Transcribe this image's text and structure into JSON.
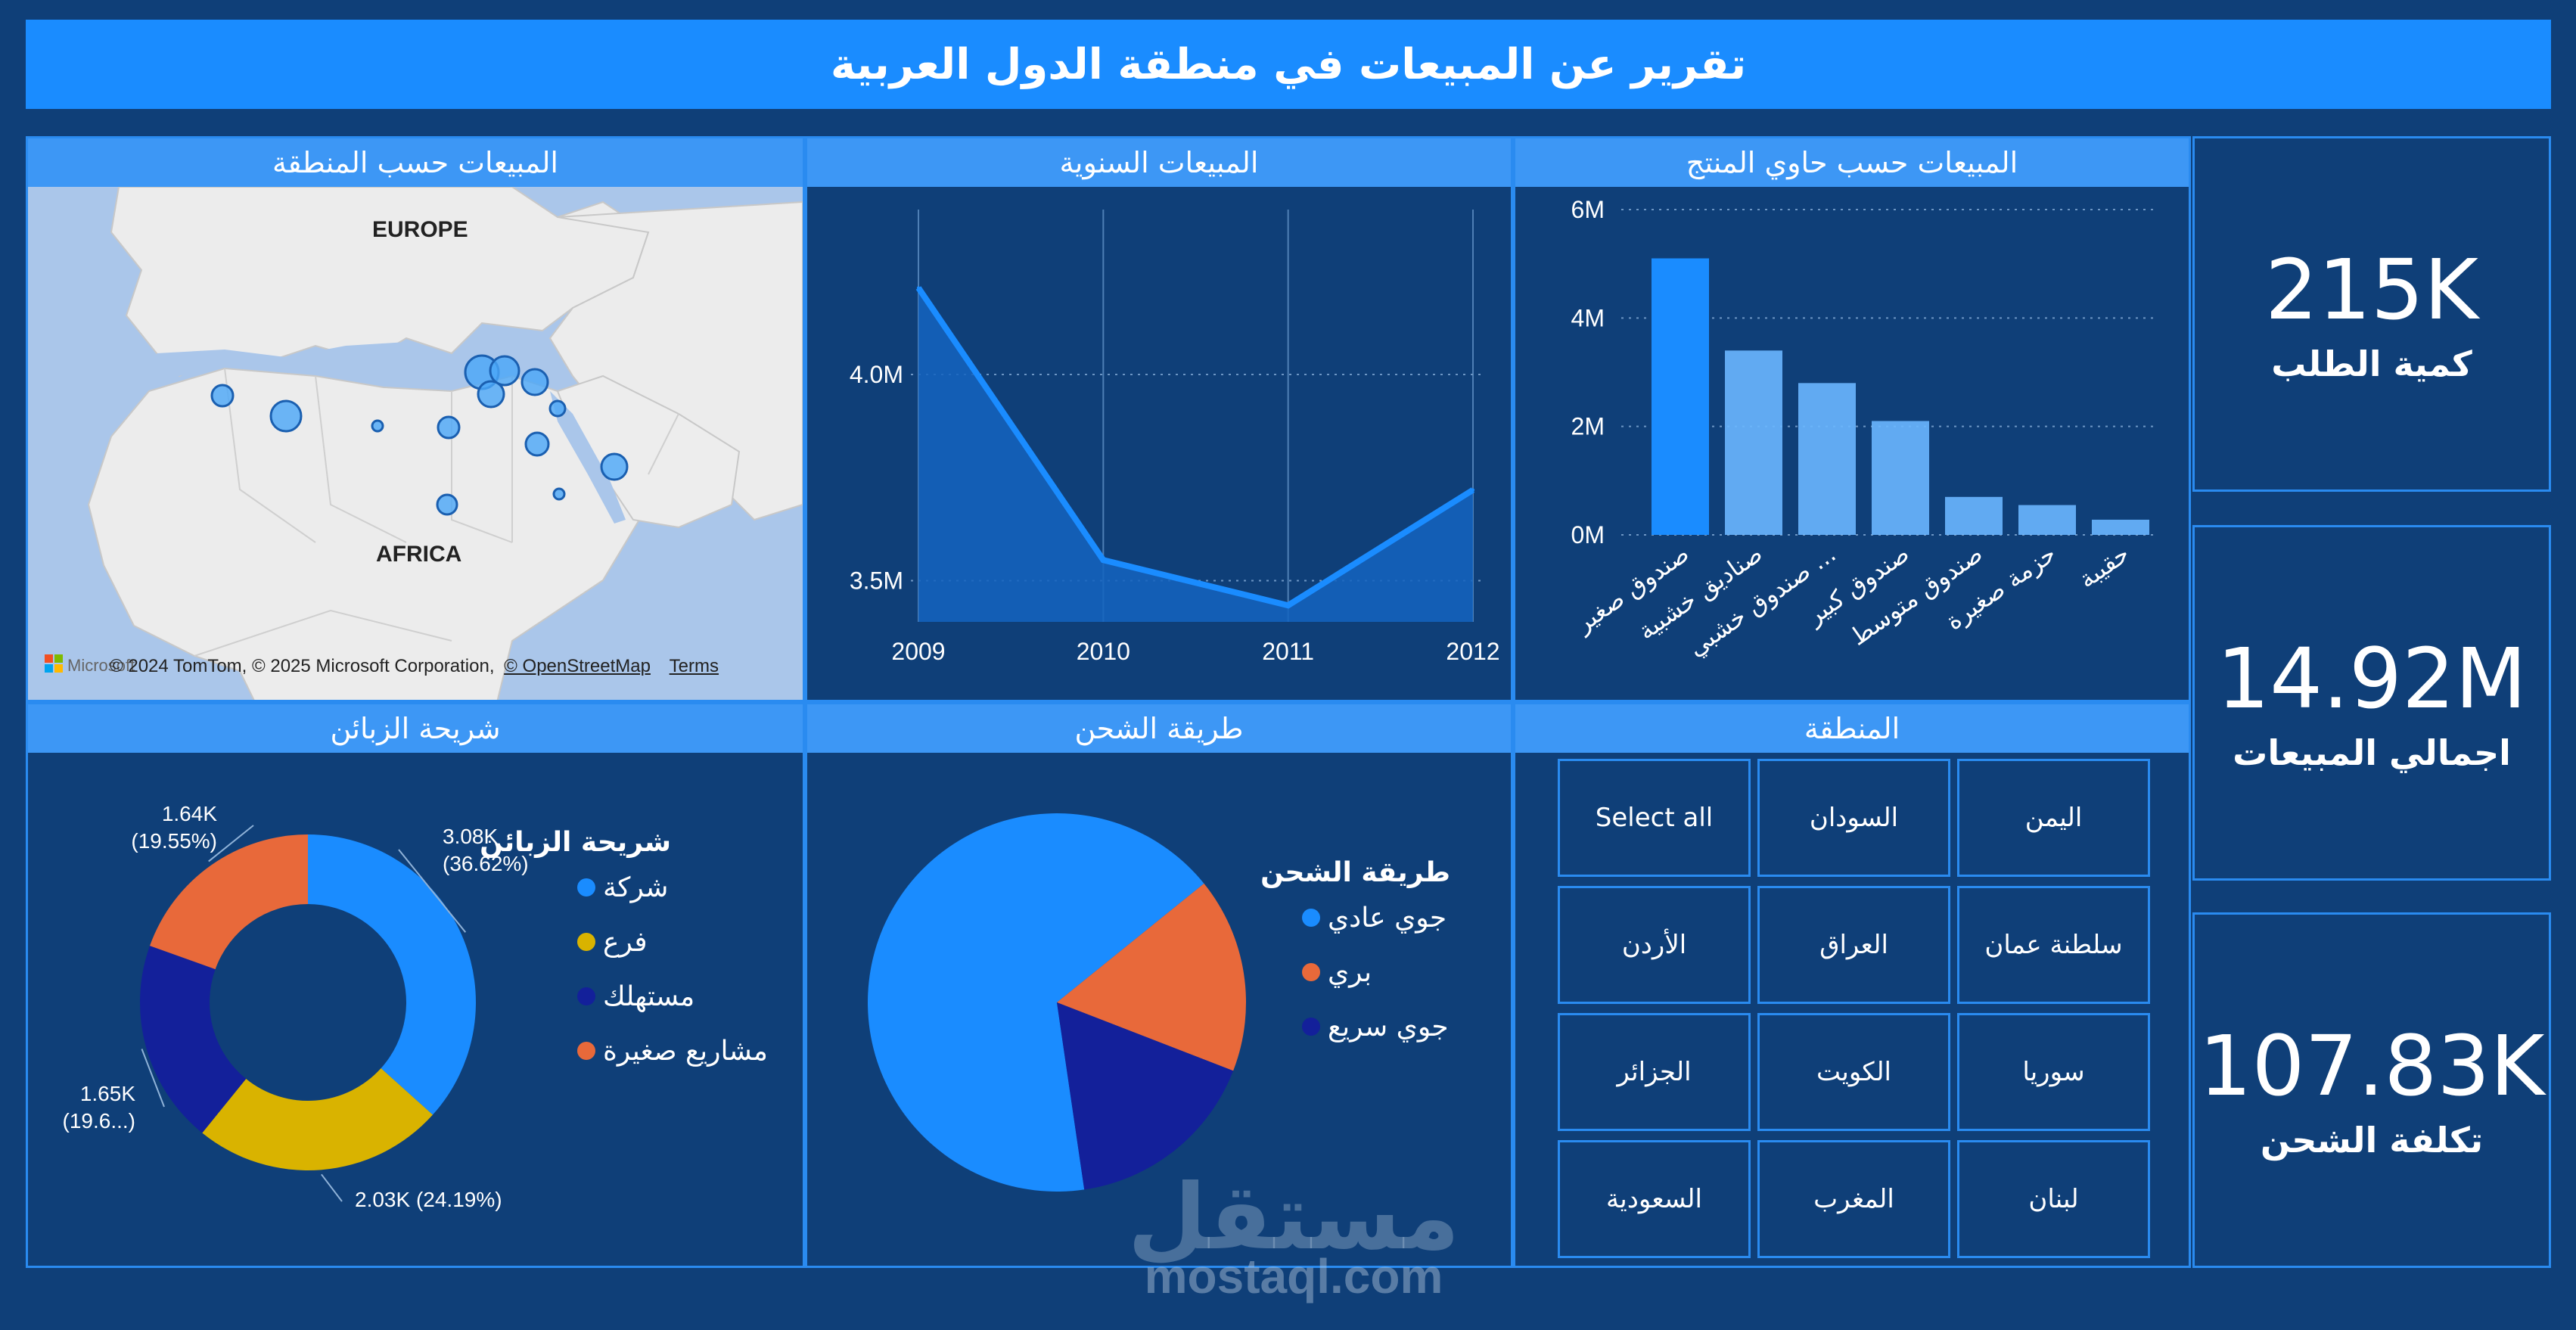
{
  "header": {
    "title": "تقرير عن المبيعات في منطقة الدول العربية"
  },
  "panels": {
    "map": {
      "title": "المبيعات حسب المنطقة",
      "label_europe": "EUROPE",
      "label_africa": "AFRICA",
      "attribution": "© 2024 TomTom, © 2025 Microsoft Corporation,",
      "osm": "© OpenStreetMap",
      "terms": "Terms",
      "ms_logo_text": "Microsoft"
    },
    "yearly": {
      "title": "المبيعات السنوية"
    },
    "container": {
      "title": "المبيعات حسب حاوي المنتج"
    },
    "segment": {
      "title": "شريحة الزبائن"
    },
    "shipping": {
      "title": "طريقة الشحن"
    },
    "region": {
      "title": "المنطقة"
    }
  },
  "kpis": {
    "quantity": {
      "value": "215K",
      "label": "كمية الطلب"
    },
    "sales": {
      "value": "14.92M",
      "label": "اجمالي المبيعات"
    },
    "shipping_cost": {
      "value": "107.83K",
      "label": "تكلفة الشحن"
    }
  },
  "colors": {
    "background": "#0f3f78",
    "header": "#1a8cff",
    "panel_head": "#3d97f5",
    "accent": "#1a8cff",
    "orange": "#e8693a",
    "yellow": "#d9b300",
    "navy": "#13209a"
  },
  "chart_data": [
    {
      "type": "area",
      "x": [
        "2009",
        "2010",
        "2011",
        "2012"
      ],
      "values": [
        4210000,
        3550000,
        3440000,
        3720000
      ],
      "ylim": [
        3400000,
        4400000
      ],
      "y_ticks": [
        "3.5M",
        "4.0M"
      ],
      "grid": true
    },
    {
      "type": "bar",
      "categories": [
        "صندوق صغير",
        "صناديق خشبية",
        "صندوق خشبي ...",
        "صندوق كبير",
        "صندوق متوسط",
        "حزمة صغيرة",
        "حقيبة"
      ],
      "values": [
        5100000,
        3400000,
        2800000,
        2100000,
        700000,
        550000,
        280000
      ],
      "ylim": [
        0,
        6000000
      ],
      "y_ticks": [
        "0M",
        "2M",
        "4M",
        "6M"
      ],
      "grid": true
    },
    {
      "type": "pie",
      "subtype": "donut",
      "legend_title": "شريحة الزبائن",
      "legend_position": "right",
      "slices": [
        {
          "name": "شركة",
          "value": 3080,
          "label": "3.08K\n(36.62%)",
          "color": "#1a8cff"
        },
        {
          "name": "فرع",
          "value": 2030,
          "label": "2.03K (24.19%)",
          "color": "#d9b300"
        },
        {
          "name": "مستهلك",
          "value": 1650,
          "label": "1.65K\n(19.6...)",
          "color": "#13209a"
        },
        {
          "name": "مشاريع صغيرة",
          "value": 1640,
          "label": "1.64K\n(19.55%)",
          "color": "#e8693a"
        }
      ]
    },
    {
      "type": "pie",
      "legend_title": "طريقة الشحن",
      "legend_position": "right",
      "slices": [
        {
          "name": "جوي عادي",
          "value": 66.5,
          "color": "#1a8cff"
        },
        {
          "name": "بري",
          "value": 16.7,
          "color": "#e8693a"
        },
        {
          "name": "جوي سريع",
          "value": 16.8,
          "color": "#13209a"
        }
      ]
    }
  ],
  "slicer": {
    "items": [
      [
        "اليمن",
        "السودان",
        "Select all"
      ],
      [
        "سلطنة عمان",
        "العراق",
        "الأردن"
      ],
      [
        "سوريا",
        "الكويت",
        "الجزائر"
      ],
      [
        "لبنان",
        "المغرب",
        "السعودية"
      ]
    ]
  },
  "watermark": {
    "logo": "مستقل",
    "text": "mostaql.com"
  }
}
